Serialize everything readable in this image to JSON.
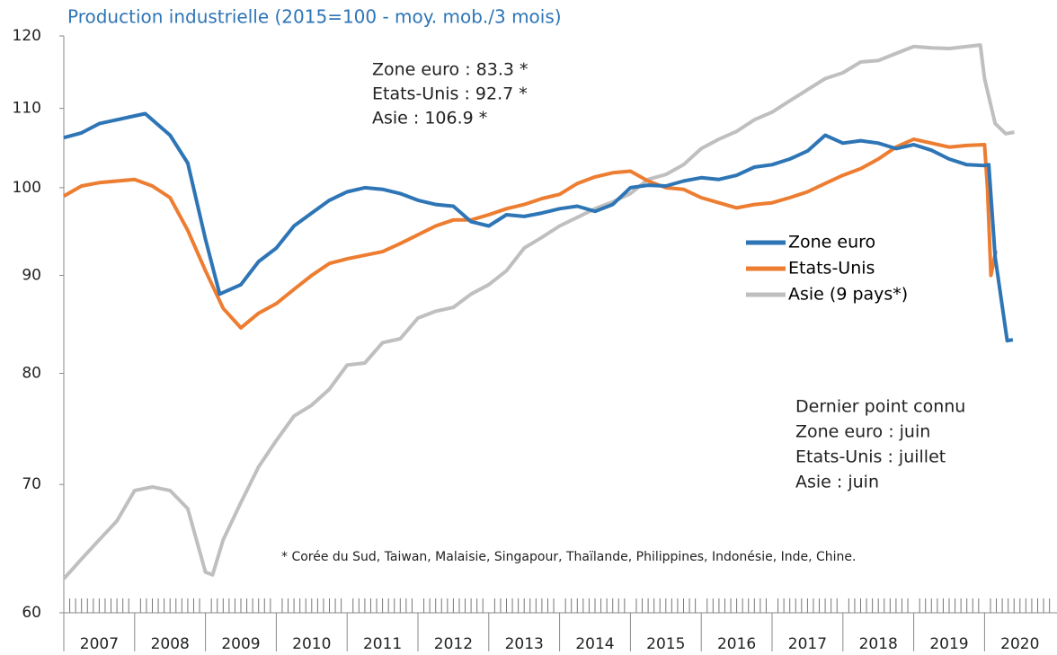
{
  "chart_data": {
    "type": "line",
    "title": "Production industrielle (2015=100 - moy. mob./3 mois)",
    "log_scale": true,
    "ylim": [
      60,
      120
    ],
    "yticks": [
      60,
      70,
      80,
      90,
      100,
      110,
      120
    ],
    "xlim": [
      2007,
      2021
    ],
    "xticks": [
      2007,
      2008,
      2009,
      2010,
      2011,
      2012,
      2013,
      2014,
      2015,
      2016,
      2017,
      2018,
      2019,
      2020
    ],
    "legend": "center-right",
    "annotations": [
      "Zone euro : 83.3 *",
      "Etats-Unis : 92.7 *",
      "Asie : 106.9 *"
    ],
    "note_lines": [
      "Dernier point connu",
      "Zone euro : juin",
      "Etats-Unis : juillet",
      "Asie : juin"
    ],
    "footnote": "* Corée du Sud, Taiwan, Malaisie, Singapour, Thaïlande, Philippines, Indonésie, Inde, Chine.",
    "series": [
      {
        "name": "Zone euro",
        "color": "#2e75b6",
        "x": [
          2007.0,
          2007.25,
          2007.5,
          2007.75,
          2008.0,
          2008.15,
          2008.5,
          2008.75,
          2009.0,
          2009.2,
          2009.5,
          2009.75,
          2010.0,
          2010.25,
          2010.5,
          2010.75,
          2011.0,
          2011.25,
          2011.5,
          2011.75,
          2012.0,
          2012.25,
          2012.5,
          2012.75,
          2013.0,
          2013.25,
          2013.5,
          2013.75,
          2014.0,
          2014.25,
          2014.5,
          2014.75,
          2015.0,
          2015.25,
          2015.5,
          2015.75,
          2016.0,
          2016.25,
          2016.5,
          2016.75,
          2017.0,
          2017.25,
          2017.5,
          2017.75,
          2018.0,
          2018.25,
          2018.5,
          2018.75,
          2019.0,
          2019.25,
          2019.5,
          2019.75,
          2020.0,
          2020.06,
          2020.15,
          2020.32,
          2020.4
        ],
        "values": [
          106.2,
          106.8,
          108,
          108.5,
          109,
          109.3,
          106.5,
          103,
          94,
          88,
          89,
          91.5,
          93,
          95.5,
          97,
          98.5,
          99.5,
          100,
          99.8,
          99.3,
          98.5,
          98,
          97.8,
          96,
          95.5,
          96.8,
          96.6,
          97,
          97.5,
          97.8,
          97.2,
          98,
          100,
          100.3,
          100.2,
          100.8,
          101.2,
          101,
          101.5,
          102.5,
          102.8,
          103.5,
          104.5,
          106.5,
          105.5,
          105.8,
          105.5,
          104.8,
          105.3,
          104.6,
          103.5,
          102.8,
          102.7,
          102.8,
          92,
          83.2,
          83.3
        ]
      },
      {
        "name": "Etats-Unis",
        "color": "#ed7d31",
        "x": [
          2007.0,
          2007.25,
          2007.5,
          2007.75,
          2008.0,
          2008.25,
          2008.5,
          2008.75,
          2009.0,
          2009.25,
          2009.5,
          2009.75,
          2010.0,
          2010.25,
          2010.5,
          2010.75,
          2011.0,
          2011.25,
          2011.5,
          2011.75,
          2012.0,
          2012.25,
          2012.5,
          2012.75,
          2013.0,
          2013.25,
          2013.5,
          2013.75,
          2014.0,
          2014.25,
          2014.5,
          2014.75,
          2015.0,
          2015.25,
          2015.5,
          2015.75,
          2016.0,
          2016.25,
          2016.5,
          2016.75,
          2017.0,
          2017.25,
          2017.5,
          2017.75,
          2018.0,
          2018.25,
          2018.5,
          2018.75,
          2019.0,
          2019.25,
          2019.5,
          2019.75,
          2020.0,
          2020.04,
          2020.09,
          2020.16
        ],
        "values": [
          99,
          100.2,
          100.6,
          100.8,
          101,
          100.2,
          98.8,
          95,
          90.5,
          86.5,
          84.5,
          86,
          87,
          88.5,
          90,
          91.3,
          91.8,
          92.2,
          92.6,
          93.5,
          94.5,
          95.5,
          96.2,
          96.2,
          96.8,
          97.5,
          98,
          98.7,
          99.2,
          100.5,
          101.3,
          101.8,
          102,
          100.8,
          100,
          99.8,
          98.8,
          98.2,
          97.6,
          98,
          98.2,
          98.8,
          99.5,
          100.5,
          101.5,
          102.3,
          103.5,
          105,
          106,
          105.5,
          105,
          105.2,
          105.3,
          100,
          90,
          92.7
        ]
      },
      {
        "name": "Asie (9 pays*)",
        "color": "#bfbfbf",
        "x": [
          2007.0,
          2007.25,
          2007.5,
          2007.75,
          2008.0,
          2008.25,
          2008.5,
          2008.75,
          2009.0,
          2009.1,
          2009.25,
          2009.5,
          2009.75,
          2010.0,
          2010.25,
          2010.5,
          2010.75,
          2011.0,
          2011.25,
          2011.5,
          2011.75,
          2012.0,
          2012.25,
          2012.5,
          2012.75,
          2013.0,
          2013.25,
          2013.5,
          2013.75,
          2014.0,
          2014.25,
          2014.5,
          2014.75,
          2015.0,
          2015.25,
          2015.5,
          2015.75,
          2016.0,
          2016.25,
          2016.5,
          2016.75,
          2017.0,
          2017.25,
          2017.5,
          2017.75,
          2018.0,
          2018.25,
          2018.5,
          2018.75,
          2019.0,
          2019.25,
          2019.5,
          2019.94,
          2020.0,
          2020.15,
          2020.3,
          2020.42
        ],
        "values": [
          62.5,
          64,
          65.5,
          67,
          69.5,
          69.8,
          69.5,
          68,
          63,
          62.8,
          65.5,
          68.5,
          71.5,
          73.8,
          76,
          77,
          78.5,
          80.8,
          81,
          83,
          83.4,
          85.5,
          86.2,
          86.6,
          88,
          89,
          90.5,
          93,
          94.2,
          95.5,
          96.5,
          97.5,
          98.3,
          99.3,
          101,
          101.6,
          102.8,
          104.8,
          106,
          107,
          108.5,
          109.5,
          111,
          112.5,
          114,
          114.8,
          116.3,
          116.5,
          117.5,
          118.5,
          118.3,
          118.2,
          118.7,
          114,
          108,
          106.7,
          106.9
        ]
      }
    ]
  }
}
